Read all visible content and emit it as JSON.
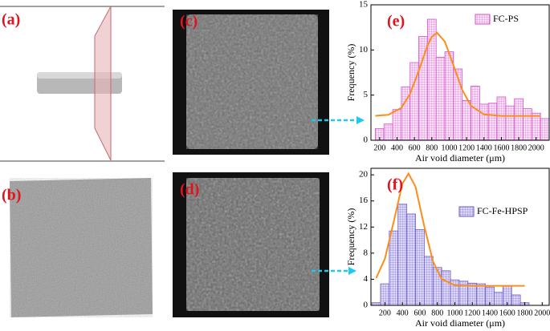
{
  "panels": [
    "(a)",
    "(b)",
    "(c)",
    "(d)"
  ],
  "chart_data": [
    {
      "type": "histogram",
      "label": "(e)",
      "legend": "FC-PS",
      "legend_corner": "upper right",
      "xlabel": "Air void diameter (μm)",
      "ylabel": "Frequency (%)",
      "bins": [
        150,
        250,
        350,
        450,
        550,
        650,
        750,
        850,
        950,
        1050,
        1150,
        1250,
        1350,
        1450,
        1550,
        1650,
        1750,
        1850,
        1950,
        2050,
        2150
      ],
      "values": [
        1.3,
        1.8,
        3.4,
        5.9,
        8.6,
        11.5,
        13.4,
        9.2,
        9.8,
        7.9,
        4.4,
        6.0,
        4.0,
        4.1,
        4.8,
        3.8,
        4.6,
        3.5,
        3.0,
        2.4
      ],
      "color": "#d94fd0",
      "fill": "#f6d8f4",
      "fit_x": [
        150,
        300,
        450,
        550,
        650,
        750,
        800,
        860,
        950,
        1050,
        1150,
        1250,
        1400,
        1600,
        1800,
        2050
      ],
      "fit_y": [
        2.71,
        2.82,
        3.59,
        5.13,
        7.69,
        10.48,
        11.45,
        11.9,
        10.93,
        8.28,
        5.57,
        3.82,
        2.86,
        2.7,
        2.7,
        2.7
      ],
      "fit_color": "#ff8c1a",
      "xlim": [
        100,
        2150
      ],
      "ylim": [
        0,
        15
      ],
      "xticks": [
        200,
        400,
        600,
        800,
        1000,
        1200,
        1400,
        1600,
        1800,
        2000
      ],
      "yticks": [
        0,
        5,
        10,
        15
      ]
    },
    {
      "type": "histogram",
      "label": "(f)",
      "legend": "FC-Fe-HPSP",
      "legend_corner": "upper right",
      "xlabel": "Air void diameter (μm)",
      "ylabel": "Frequency (%)",
      "bins": [
        50,
        150,
        250,
        350,
        450,
        550,
        650,
        750,
        850,
        950,
        1050,
        1150,
        1250,
        1350,
        1450,
        1550,
        1650,
        1750,
        1850
      ],
      "values": [
        0.4,
        3.3,
        11.4,
        15.5,
        14.0,
        11.6,
        7.5,
        5.8,
        5.3,
        3.9,
        3.7,
        3.4,
        3.3,
        2.8,
        2.0,
        3.0,
        1.6,
        0.4
      ],
      "color": "#6a5acd",
      "fill": "#c9c3f2",
      "fit_x": [
        100,
        200,
        300,
        400,
        470,
        550,
        650,
        750,
        850,
        1000,
        1200,
        1500,
        1800
      ],
      "fit_y": [
        4.19,
        7.15,
        12.79,
        18.63,
        20.2,
        18.18,
        12.13,
        6.72,
        4.03,
        3.07,
        3.0,
        3.0,
        3.0
      ],
      "fit_color": "#ff8c1a",
      "xlim": [
        40,
        2080
      ],
      "ylim": [
        0,
        21
      ],
      "xticks": [
        200,
        400,
        600,
        800,
        1000,
        1200,
        1400,
        1600,
        1800,
        2000
      ],
      "yticks": [
        0,
        4,
        8,
        12,
        16,
        20
      ]
    }
  ]
}
